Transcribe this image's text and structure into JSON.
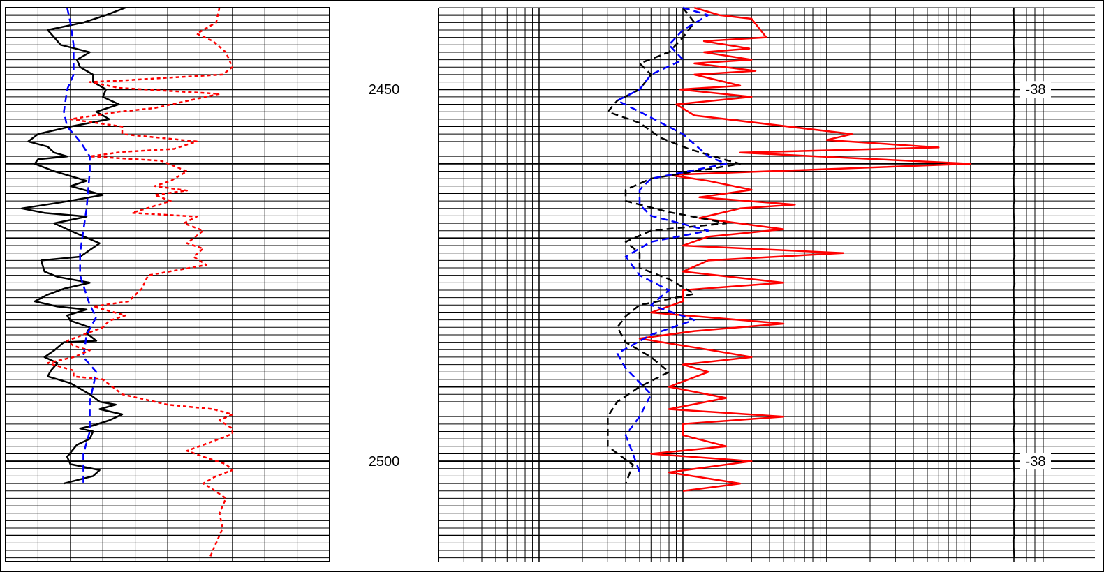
{
  "chart_data": [
    {
      "type": "line",
      "track": "left",
      "depth_range": [
        2439,
        2513.5
      ],
      "x_scale": "linear",
      "x_grid_divisions": 10,
      "grid": true,
      "series": [
        {
          "color": "#000000",
          "style": "solid",
          "x": [
            3.7,
            3.1,
            2.4,
            1.3,
            1.5,
            1.7,
            2.6,
            2.2,
            2.3,
            2.7,
            2.7,
            3.1,
            3.0,
            3.5,
            2.8,
            3.2,
            2.0,
            1.0,
            0.7,
            1.3,
            1.5,
            1.9,
            1.0,
            0.9,
            1.5,
            2.5,
            2.0,
            3.0,
            1.7,
            0.5,
            1.2,
            2.5,
            1.5,
            2.0,
            2.9,
            2.3,
            1.1,
            1.2,
            1.6,
            2.6,
            1.8,
            1.3,
            0.9,
            1.6,
            2.5,
            1.9,
            2.0,
            2.6,
            2.5,
            2.8,
            1.8,
            1.5,
            1.2,
            1.6,
            1.4,
            1.3,
            2.0,
            2.6,
            2.9,
            3.4,
            2.9,
            3.6,
            3.2,
            2.7,
            2.3,
            2.7,
            2.6,
            2.2,
            1.9,
            2.0,
            2.9,
            2.7,
            1.8
          ],
          "depth": [
            2439,
            2440,
            2441,
            2442,
            2443,
            2444,
            2445,
            2446,
            2447,
            2448,
            2449,
            2450,
            2451,
            2452,
            2453,
            2454,
            2455,
            2456,
            2457,
            2457.7,
            2458.5,
            2459,
            2459.4,
            2460,
            2461,
            2462.3,
            2463,
            2464.2,
            2465.2,
            2466,
            2466.6,
            2467.1,
            2468,
            2469,
            2470.7,
            2472.5,
            2473,
            2474.5,
            2475.2,
            2476,
            2476.8,
            2477.6,
            2478.5,
            2479.2,
            2479.6,
            2480.4,
            2481.1,
            2482,
            2482.8,
            2483.8,
            2484,
            2485.1,
            2486,
            2486.8,
            2487.8,
            2488.6,
            2489.5,
            2491,
            2492,
            2492.4,
            2493,
            2493.7,
            2494.5,
            2495.2,
            2495.6,
            2496,
            2497,
            2497.8,
            2499.4,
            2500.4,
            2501.2,
            2502,
            2503
          ]
        },
        {
          "color": "#0000ff",
          "style": "dashed",
          "x": [
            1.9,
            2.0,
            2.1,
            2.1,
            1.9,
            1.8,
            1.9,
            2.3,
            2.6,
            2.6,
            2.5,
            2.3,
            2.3,
            2.6,
            2.8,
            2.5,
            2.4,
            2.8,
            2.6,
            2.6,
            2.4,
            2.4
          ],
          "depth": [
            2439,
            2441,
            2444,
            2448,
            2450,
            2453,
            2455,
            2457,
            2459,
            2461,
            2466,
            2472,
            2475,
            2479,
            2480.6,
            2483,
            2486,
            2488,
            2492,
            2496,
            2499,
            2503
          ]
        },
        {
          "color": "#ff0000",
          "style": "dotted",
          "x": [
            6.6,
            6.5,
            5.9,
            6.4,
            6.8,
            7.0,
            6.7,
            5.1,
            3.6,
            2.6,
            3.5,
            6.6,
            4.6,
            3.5,
            2.0,
            3.6,
            3.6,
            5.9,
            5.2,
            3.6,
            2.6,
            4.8,
            5.6,
            5.1,
            4.6,
            5.6,
            4.6,
            5.1,
            3.9,
            5.9,
            5.5,
            6.1,
            5.6,
            6.1,
            5.8,
            6.2,
            4.4,
            4.2,
            3.8,
            2.7,
            3.7,
            3.2,
            3.0,
            1.9,
            2.1,
            2.6,
            2.1,
            1.3,
            2.1,
            2.1,
            3.0,
            3.3,
            3.6,
            5.0,
            6.4,
            7.0,
            6.6,
            7.0,
            7.0,
            6.6,
            6.1,
            5.6,
            6.1,
            6.8,
            7.0,
            6.5,
            6.1,
            6.3,
            6.8,
            6.6,
            6.7,
            6.3
          ],
          "depth": [
            2439,
            2441,
            2442.5,
            2443.5,
            2445,
            2447,
            2448,
            2448.4,
            2448.8,
            2449,
            2449.8,
            2450.6,
            2452.5,
            2453,
            2454,
            2455,
            2456,
            2457,
            2458,
            2458.4,
            2459,
            2459.6,
            2461,
            2462.3,
            2463,
            2463.6,
            2464.2,
            2465,
            2466.6,
            2467.1,
            2468,
            2469,
            2470.7,
            2471.4,
            2472.5,
            2473.6,
            2475,
            2476.8,
            2478.5,
            2479.2,
            2480.4,
            2481.1,
            2482,
            2483.8,
            2484.5,
            2485.1,
            2486,
            2486.8,
            2487.8,
            2488.6,
            2489,
            2490,
            2491,
            2492.4,
            2493,
            2493.7,
            2494.5,
            2495.6,
            2496.3,
            2497,
            2497.8,
            2498.6,
            2499.4,
            2500.4,
            2501.2,
            2502,
            2503,
            2503.5,
            2505,
            2507,
            2509,
            2513
          ]
        }
      ]
    },
    {
      "type": "line",
      "track": "center",
      "depth_labels": [
        "2450",
        "2500"
      ],
      "depth_label_values": [
        2450,
        2500
      ]
    },
    {
      "type": "line",
      "track": "right",
      "depth_range": [
        2439,
        2513.5
      ],
      "x_scale": "log",
      "x_range": [
        0.2,
        2000
      ],
      "grid": true,
      "series": [
        {
          "color": "#ff0000",
          "style": "solid",
          "x": [
            12,
            18,
            30,
            38,
            14,
            29,
            14,
            30,
            12,
            32,
            12,
            25,
            9.5,
            30,
            9,
            12,
            150,
            100,
            600,
            25,
            1000,
            8,
            15,
            30,
            13,
            60,
            25,
            13,
            50,
            15,
            10,
            130,
            15,
            10,
            50,
            10,
            10,
            6,
            50,
            12,
            5,
            15,
            30,
            10,
            15,
            8,
            20,
            8,
            50,
            10,
            10,
            20,
            6,
            30,
            8,
            25,
            10
          ],
          "depth": [
            2439,
            2440,
            2440.5,
            2443,
            2443.5,
            2444.5,
            2445,
            2446,
            2446.5,
            2447.5,
            2448,
            2449.5,
            2450,
            2451,
            2452,
            2453.5,
            2456,
            2456.8,
            2457.8,
            2458.5,
            2460,
            2461.5,
            2462.3,
            2463.5,
            2464.5,
            2465.5,
            2466,
            2467.3,
            2468.8,
            2469.8,
            2471,
            2472,
            2473,
            2474.5,
            2476,
            2477,
            2478.5,
            2480,
            2481.5,
            2482.5,
            2483.5,
            2485,
            2486,
            2487,
            2488,
            2490,
            2491.5,
            2493,
            2494,
            2495,
            2496.5,
            2498,
            2499,
            2500,
            2501.5,
            2503,
            2504
          ]
        },
        {
          "color": "#000000",
          "style": "dashed",
          "x": [
            10,
            12,
            10,
            8,
            5,
            6,
            5,
            3.5,
            3,
            5,
            7,
            11,
            20,
            25,
            6,
            4,
            4,
            8,
            15,
            20,
            6,
            4,
            5,
            5,
            8,
            12,
            5,
            4,
            3.5,
            4,
            6,
            8,
            5,
            3.5,
            3,
            3,
            3,
            4.5,
            4
          ],
          "depth": [
            2439,
            2441,
            2443,
            2445,
            2446.5,
            2448,
            2450,
            2451.5,
            2453,
            2454.5,
            2456.5,
            2458,
            2459.5,
            2460,
            2462,
            2463.5,
            2465,
            2466.5,
            2467.5,
            2468,
            2469,
            2470.5,
            2472,
            2474,
            2475.5,
            2477.5,
            2479,
            2480.5,
            2482,
            2484,
            2486,
            2488,
            2490,
            2492,
            2494,
            2496,
            2498,
            2500.5,
            2503
          ]
        },
        {
          "color": "#0000ff",
          "style": "dashed",
          "x": [
            10,
            15,
            10,
            8,
            10,
            6,
            5,
            3.5,
            5,
            10,
            15,
            20,
            6,
            5,
            5,
            6,
            12,
            15,
            6,
            4,
            5,
            8,
            6,
            12,
            6,
            3.5,
            4,
            6,
            5,
            4,
            4.5,
            5
          ],
          "depth": [
            2439,
            2440,
            2442,
            2444,
            2446,
            2448,
            2450,
            2451.5,
            2453,
            2456,
            2459,
            2460,
            2462,
            2463.5,
            2465.5,
            2467,
            2468.5,
            2469,
            2470.5,
            2472.5,
            2475,
            2477,
            2479,
            2481,
            2483,
            2485.5,
            2487.5,
            2491,
            2494,
            2496.5,
            2499,
            2501.5
          ]
        }
      ]
    },
    {
      "type": "line",
      "track": "rightmost",
      "temp_labels": [
        "-38",
        "-38"
      ],
      "temp_label_depths": [
        2450,
        2500
      ]
    }
  ]
}
